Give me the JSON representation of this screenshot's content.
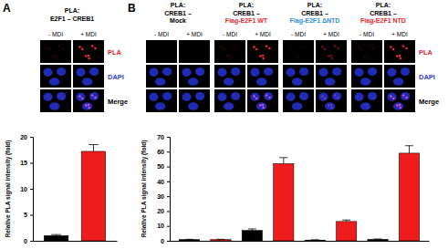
{
  "panels": [
    {
      "label": "A",
      "headers": [
        {
          "lines": [
            "PLA:",
            "E2F1 – CREB1"
          ],
          "color": "#000000"
        }
      ],
      "conditions": [
        "- MDI",
        "+ MDI"
      ],
      "channels": [
        {
          "label": "PLA",
          "color": "#e8262a"
        },
        {
          "label": "DAPI",
          "color": "#2b3bd8"
        },
        {
          "label": "Merge",
          "color": "#000000"
        }
      ]
    },
    {
      "label": "B",
      "headers": [
        {
          "lines": [
            "PLA:",
            "CREB1 –",
            "Mock"
          ],
          "color": "#000000"
        },
        {
          "lines": [
            "PLA:",
            "CREB1 –",
            "Flag-E2F1 WT"
          ],
          "color": "#e8262a"
        },
        {
          "lines": [
            "PLA:",
            "CREB1 –",
            "Flag-E2F1 ΔNTD"
          ],
          "color": "#2f8fd8"
        },
        {
          "lines": [
            "PLA:",
            "CREB1 –",
            "Flag-E2F1 NTD"
          ],
          "color": "#e8262a"
        }
      ],
      "conditions": [
        "- MDI",
        "+ MDI"
      ],
      "channels": [
        {
          "label": "PLA",
          "color": "#e8262a"
        },
        {
          "label": "DAPI",
          "color": "#2b3bd8"
        },
        {
          "label": "Merge",
          "color": "#000000"
        }
      ]
    }
  ],
  "chart_data": [
    {
      "type": "bar",
      "categories": [
        null,
        null
      ],
      "values": [
        1,
        17.2
      ],
      "errors": [
        0.2,
        1.3
      ],
      "colors": [
        "#000000",
        "#ee1c1c"
      ],
      "ylim": [
        0,
        20
      ],
      "yticks": [
        0,
        5,
        10,
        15,
        20
      ],
      "y_label": "Relative PLA signal intensity (fold)",
      "tick_labels": "y"
    },
    {
      "type": "bar",
      "categories": [
        null,
        null,
        null,
        null,
        null,
        null,
        null,
        null
      ],
      "values": [
        0.8,
        0.8,
        7,
        52,
        0.5,
        13,
        1,
        59
      ],
      "errors": [
        0.2,
        0.2,
        1,
        4,
        0.2,
        1,
        0.2,
        5
      ],
      "colors": [
        "#000000",
        "#ee1c1c",
        "#000000",
        "#ee1c1c",
        "#000000",
        "#ee1c1c",
        "#000000",
        "#ee1c1c"
      ],
      "ylim": [
        0,
        70
      ],
      "yticks": [
        0,
        10,
        20,
        30,
        40,
        50,
        60,
        70
      ],
      "y_label": "Relative PLA signal intensity (fold)",
      "tick_labels": "y"
    }
  ]
}
